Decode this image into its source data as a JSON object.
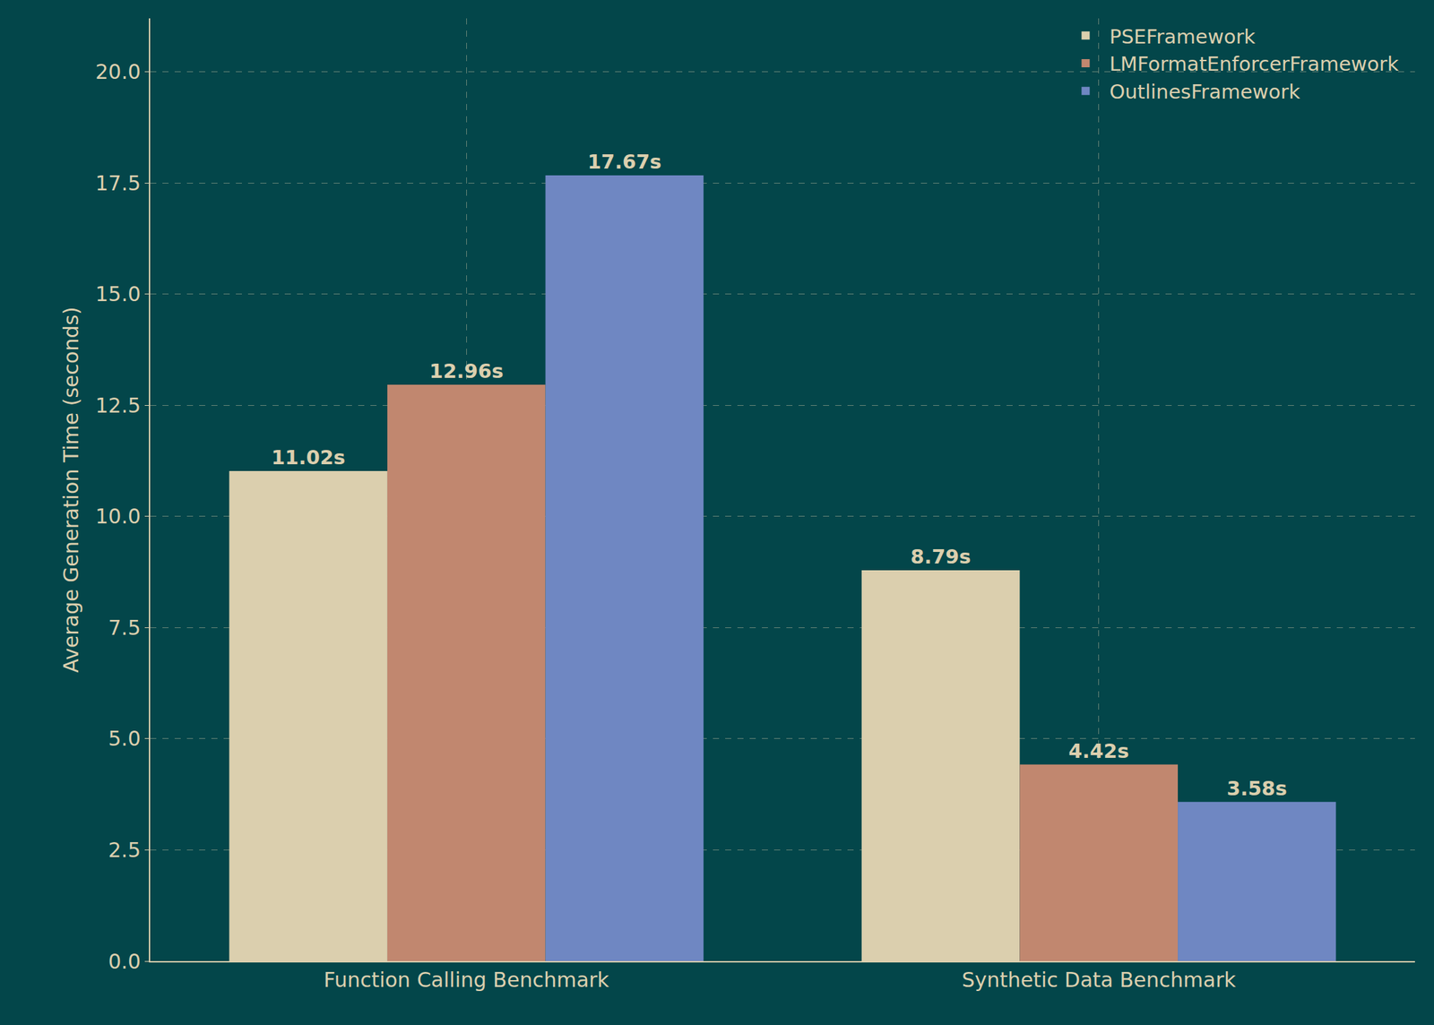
{
  "chart_data": {
    "type": "bar",
    "ylabel": "Average Generation Time (seconds)",
    "categories": [
      "Function Calling Benchmark",
      "Synthetic Data Benchmark"
    ],
    "series": [
      {
        "name": "PSEFramework",
        "color": "#dbcfae",
        "values": [
          11.02,
          8.79
        ],
        "value_labels": [
          "11.02s",
          "8.79s"
        ]
      },
      {
        "name": "LMFormatEnforcerFramework",
        "color": "#c1876f",
        "values": [
          12.96,
          4.42
        ],
        "value_labels": [
          "12.96s",
          "4.42s"
        ]
      },
      {
        "name": "OutlinesFramework",
        "color": "#6f87c2",
        "values": [
          17.67,
          3.58
        ],
        "value_labels": [
          "17.67s",
          "3.58s"
        ]
      }
    ],
    "ylim": [
      0,
      21.2
    ],
    "yticks": [
      {
        "value": 0,
        "label": "0.0"
      },
      2.5,
      {
        "value": 5,
        "label": "5.0"
      },
      7.5,
      {
        "value": 10,
        "label": "10.0"
      },
      12.5,
      {
        "value": 15,
        "label": "15.0"
      },
      17.5,
      {
        "value": 20,
        "label": "20.0"
      }
    ],
    "grid": true,
    "legend": "upper right",
    "data_labels": true
  }
}
